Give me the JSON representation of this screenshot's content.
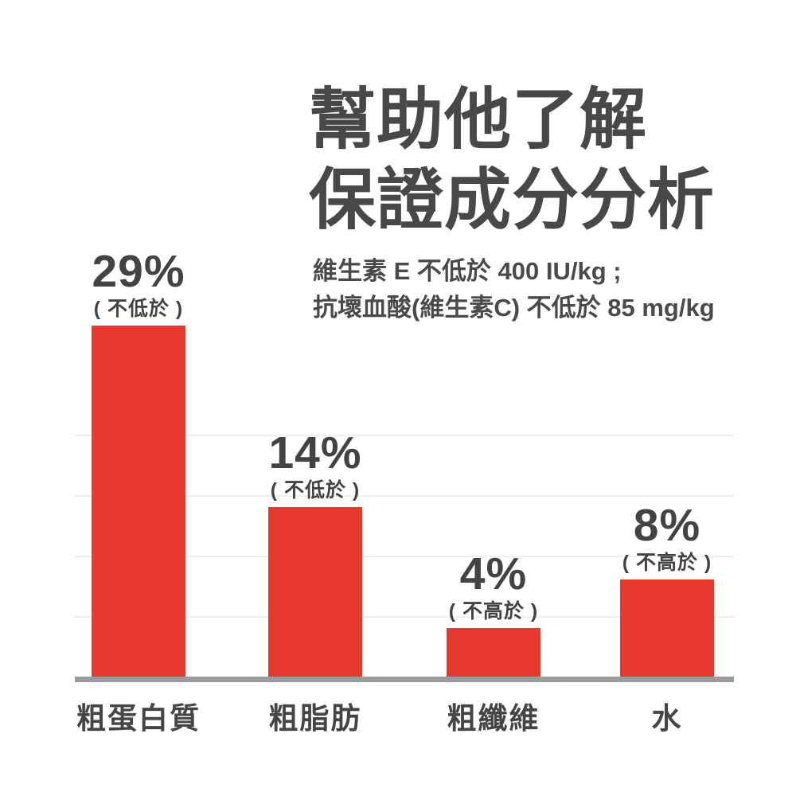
{
  "page": {
    "background_color": "#ffffff",
    "text_color": "#484848"
  },
  "title": {
    "line1": "幫助他了解",
    "line2": "保證成分分析"
  },
  "subtitle": {
    "line1": "維生素 E 不低於 400 IU/kg ;",
    "line2": "抗壞血酸(維生素C) 不低於 85 mg/kg"
  },
  "chart_data": {
    "type": "bar",
    "categories": [
      "粗蛋白質",
      "粗脂肪",
      "粗纖維",
      "水"
    ],
    "values": [
      29,
      14,
      4,
      8
    ],
    "value_labels": [
      "29%",
      "14%",
      "4%",
      "8%"
    ],
    "qualifiers": [
      "( 不低於 )",
      "( 不低於 )",
      "( 不高於 )",
      "( 不高於 )"
    ],
    "title": "保證成分分析",
    "xlabel": "",
    "ylabel": "",
    "ylim": [
      0,
      30
    ],
    "gridline_percents": [
      5,
      10,
      15,
      20
    ],
    "grid": "horizontal-faint",
    "legend_position": "none",
    "bar_color": "#e8392f",
    "axis_color": "#9b9b9b",
    "gridline_color": "#f0f0f0",
    "label_color": "#434343"
  }
}
